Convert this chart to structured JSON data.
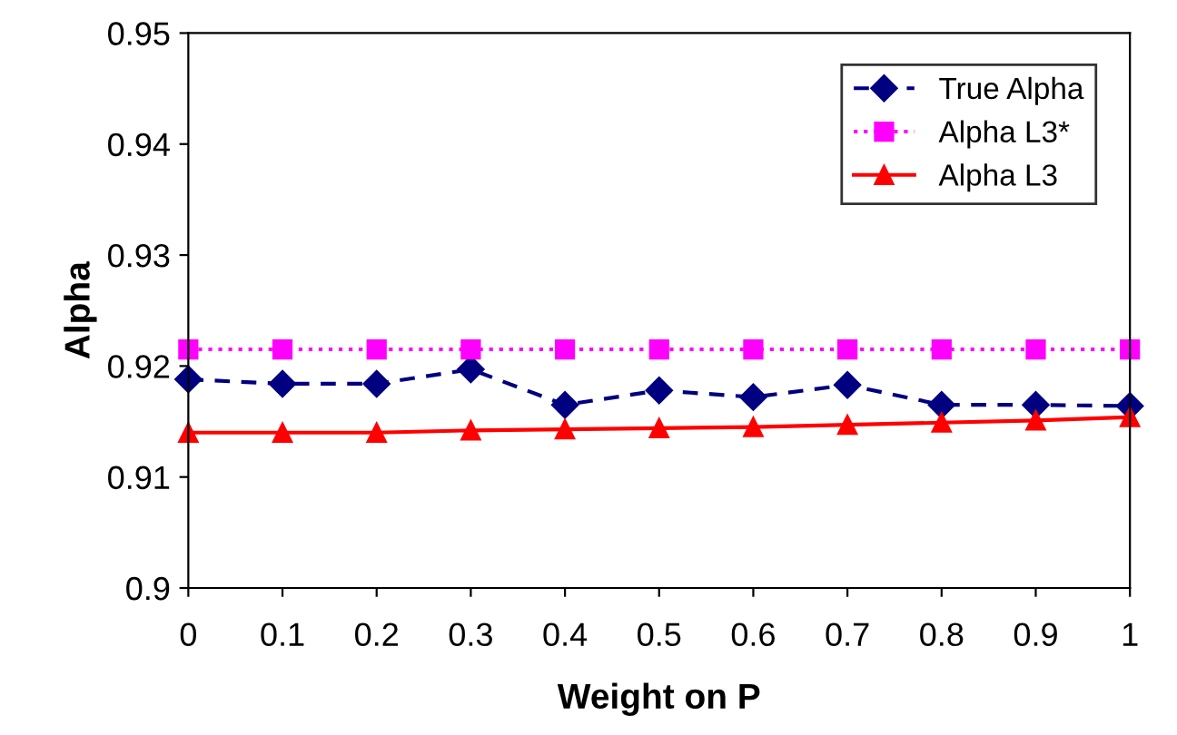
{
  "chart_data": {
    "type": "line",
    "xlabel": "Weight on P",
    "ylabel": "Alpha",
    "x": [
      0,
      0.1,
      0.2,
      0.3,
      0.4,
      0.5,
      0.6,
      0.7,
      0.8,
      0.9,
      1
    ],
    "series": [
      {
        "name": "True Alpha",
        "color": "#000080",
        "marker": "diamond",
        "line_style": "dashed",
        "values": [
          0.9188,
          0.9184,
          0.9184,
          0.9197,
          0.9165,
          0.9178,
          0.9172,
          0.9183,
          0.9165,
          0.9165,
          0.9164
        ]
      },
      {
        "name": "Alpha L3*",
        "color": "#ff00ff",
        "marker": "square",
        "line_style": "dotted",
        "values": [
          0.9215,
          0.9215,
          0.9215,
          0.9215,
          0.9215,
          0.9215,
          0.9215,
          0.9215,
          0.9215,
          0.9215,
          0.9215
        ]
      },
      {
        "name": "Alpha L3",
        "color": "#ff0000",
        "marker": "triangle",
        "line_style": "solid",
        "values": [
          0.914,
          0.914,
          0.914,
          0.9142,
          0.9143,
          0.9144,
          0.9145,
          0.9147,
          0.9149,
          0.9151,
          0.9154
        ]
      }
    ],
    "xlim": [
      0,
      1
    ],
    "xticks": [
      0,
      0.1,
      0.2,
      0.3,
      0.4,
      0.5,
      0.6,
      0.7,
      0.8,
      0.9,
      1
    ],
    "ylim": [
      0.9,
      0.95
    ],
    "yticks": [
      0.9,
      0.91,
      0.92,
      0.93,
      0.94,
      0.95
    ],
    "legend": "top right",
    "grid": false
  }
}
